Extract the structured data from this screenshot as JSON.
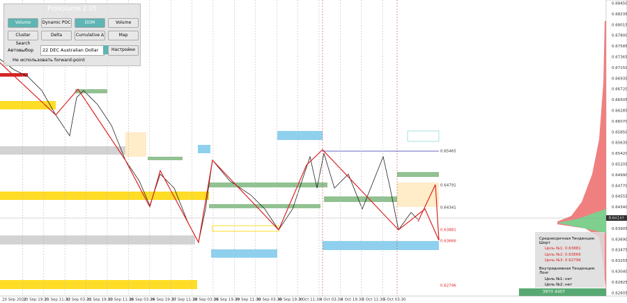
{
  "panel": {
    "title": "ProVolume 2.05",
    "buttons": [
      "Volume Profile",
      "Dynamic POC",
      "DOM",
      "Volume",
      "Cluster Search",
      "Delta",
      "Cumulative Δ",
      "Map"
    ],
    "auto_select": "Автовыбор",
    "instrument": "22 DEC Australian Dollar",
    "settings": "Настройки",
    "forward_point": "Не использовать forward-point"
  },
  "price_axis": {
    "labels": [
      "0.68450",
      "0.68235",
      "0.68015",
      "0.67800",
      "0.67585",
      "0.67365",
      "0.67150",
      "0.66935",
      "0.66720",
      "0.66505",
      "0.66285",
      "0.66070",
      "0.65850",
      "0.65635",
      "0.65420",
      "0.65205",
      "0.64990",
      "0.64770",
      "0.64555",
      "0.64340",
      "0.64125",
      "0.63905",
      "0.63690",
      "0.63475",
      "0.63255",
      "0.63040",
      "0.62825",
      "0.62605"
    ],
    "current": "0.64141"
  },
  "time_axis": {
    "labels": [
      "20 Sep 2022",
      "20 Sep 19:30",
      "21 Sep 11:30",
      "22 Sep 03:30",
      "22 Sep 19:30",
      "23 Sep 11:30",
      "26 Sep 03:30",
      "26 Sep 19:30",
      "27 Sep 11:30",
      "28 Sep 03:30",
      "28 Sep 19:30",
      "29 Sep 11:30",
      "30 Sep 03:30",
      "30 Sep 19:30",
      "3 Oct 11:30",
      "4 Oct 03:30",
      "4 Oct 19:30",
      "5 Oct 11:30",
      "6 Oct 03:30"
    ]
  },
  "levels": [
    "0.65465",
    "0.64791",
    "0.64341",
    "0.63881",
    "0.63666",
    "0.62796"
  ],
  "trend": {
    "medium": "Среднесрочная Тенденция: Шорт",
    "medium_targets": [
      "Цель №1: 0.63881",
      "Цель №2: 0.63666",
      "Цель №3: 0.62796"
    ],
    "intraday": "Внутридневная Тенденция: Лонг",
    "intraday_targets": [
      "Цель №1: нет",
      "Цель №2: нет"
    ]
  },
  "footer": "3970 4407"
}
